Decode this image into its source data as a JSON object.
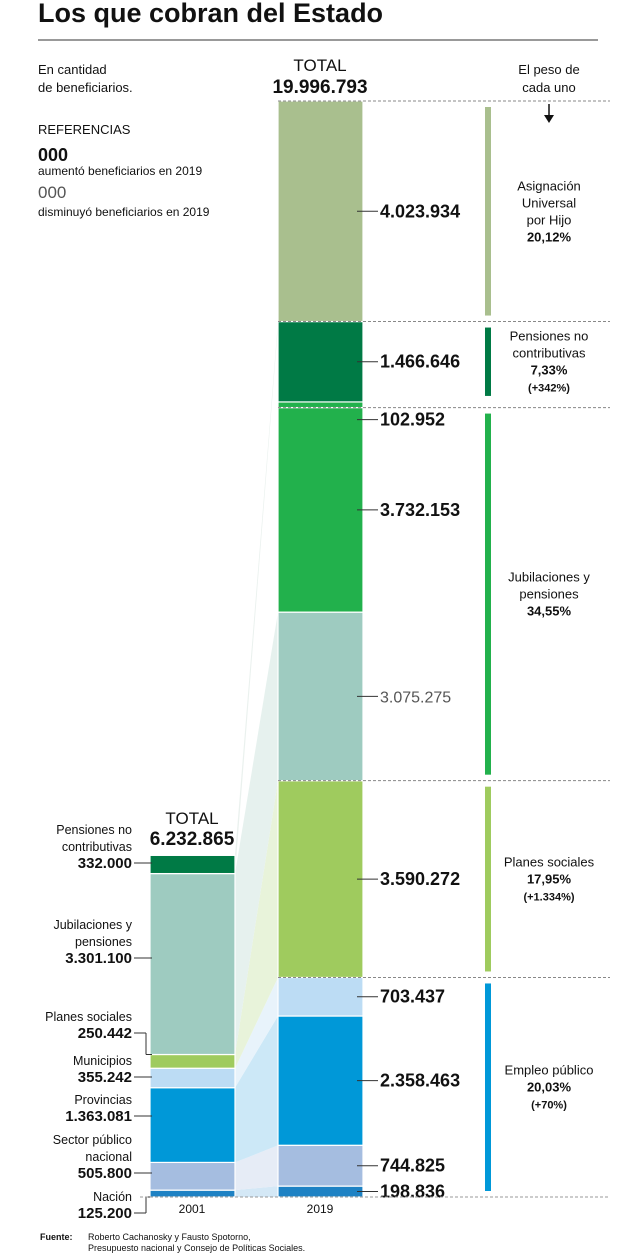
{
  "title": "Los que cobran del Estado",
  "subtitle": "En cantidad\nde beneficiarios.",
  "references": {
    "heading": "REFERENCIAS",
    "bold_sample": "000",
    "bold_desc": "aumentó beneficiarios en 2019",
    "light_sample": "000",
    "light_desc": "disminuyó beneficiarios en 2019"
  },
  "weight_header": "El peso de\ncada uno",
  "source_label": "Fuente:",
  "source_text": "Roberto Cachanosky y Fausto Spotorno,\nPresupuesto nacional y Consejo de Políticas Sociales.",
  "colors": {
    "pensiones": "#007a45",
    "jubilaciones_up": "#22b14c",
    "jubilaciones_2001": "#9ecbc0",
    "auh": "#a9bf8e",
    "planes": "#9fcb5e",
    "municipios": "#bcdcf4",
    "provincias": "#0098d8",
    "sector": "#a5bde0",
    "nacion": "#1e82c4",
    "axis": "#999999"
  },
  "chart_data": {
    "type": "stacked-bar",
    "categories": [
      "2001",
      "2019"
    ],
    "totals": {
      "2001": {
        "label": "TOTAL",
        "value": "6.232.865"
      },
      "2019": {
        "label": "TOTAL",
        "value": "19.996.793"
      }
    },
    "bars": {
      "2001": [
        {
          "key": "nacion",
          "label": "Nación",
          "value": 125200,
          "text": "125.200"
        },
        {
          "key": "sector",
          "label": "Sector público\nnacional",
          "value": 505800,
          "text": "505.800"
        },
        {
          "key": "provincias",
          "label": "Provincias",
          "value": 1363081,
          "text": "1.363.081"
        },
        {
          "key": "municipios",
          "label": "Municipios",
          "value": 355242,
          "text": "355.242"
        },
        {
          "key": "planes",
          "label": "Planes sociales",
          "value": 250442,
          "text": "250.442"
        },
        {
          "key": "jubilaciones",
          "label": "Jubilaciones y\npensiones",
          "value": 3301100,
          "text": "3.301.100"
        },
        {
          "key": "pensiones",
          "label": "Pensiones no\ncontributivas",
          "value": 332000,
          "text": "332.000"
        }
      ],
      "2019": [
        {
          "key": "nacion",
          "value": 198836,
          "text": "198.836",
          "bold": true
        },
        {
          "key": "sector",
          "value": 744825,
          "text": "744.825",
          "bold": true
        },
        {
          "key": "provincias",
          "value": 2358463,
          "text": "2.358.463",
          "bold": true
        },
        {
          "key": "municipios",
          "value": 703437,
          "text": "703.437",
          "bold": true
        },
        {
          "key": "planes",
          "value": 3590272,
          "text": "3.590.272",
          "bold": true
        },
        {
          "key": "jubilaciones_2001",
          "value": 3075275,
          "text": "3.075.275",
          "bold": false
        },
        {
          "key": "jubilaciones_up",
          "value": 3732153,
          "text": "3.732.153",
          "bold": true
        },
        {
          "key": "jubilaciones_extra",
          "value": 102952,
          "text": "102.952",
          "bold": true
        },
        {
          "key": "pensiones",
          "value": 1466646,
          "text": "1.466.646",
          "bold": true
        },
        {
          "key": "auh",
          "value": 4023934,
          "text": "4.023.934",
          "bold": true
        }
      ]
    },
    "weights": [
      {
        "name": "Asignación\nUniversal\npor Hijo",
        "pct": "20,12%",
        "change": ""
      },
      {
        "name": "Pensiones no\ncontributivas",
        "pct": "7,33%",
        "change": "(+342%)"
      },
      {
        "name": "Jubilaciones y\npensiones",
        "pct": "34,55%",
        "change": ""
      },
      {
        "name": "Planes sociales",
        "pct": "17,95%",
        "change": "(+1.334%)"
      },
      {
        "name": "Empleo público",
        "pct": "20,03%",
        "change": "(+70%)"
      }
    ]
  }
}
